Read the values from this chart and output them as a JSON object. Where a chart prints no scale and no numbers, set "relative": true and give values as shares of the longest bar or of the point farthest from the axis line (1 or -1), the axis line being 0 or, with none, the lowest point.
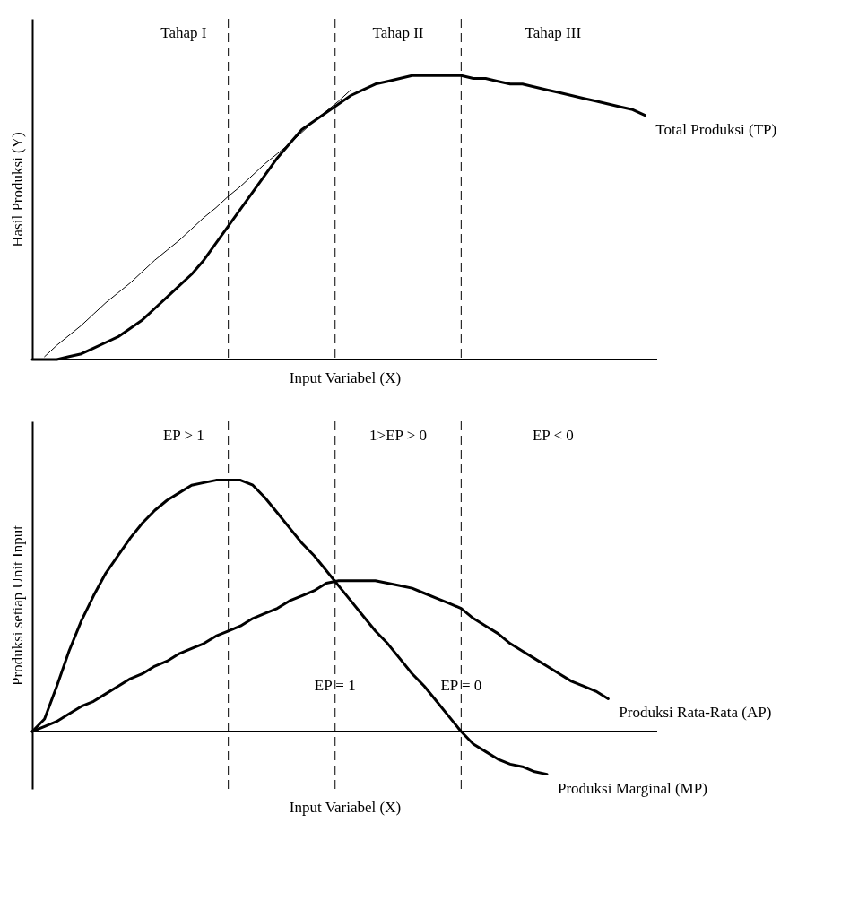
{
  "chart_data": [
    {
      "type": "line",
      "relative": true,
      "xlabel": "Input Variabel (X)",
      "ylabel": "Hasil Produksi (Y)",
      "categories": [
        null,
        null,
        null,
        null,
        null,
        null,
        null,
        null,
        null,
        null,
        null,
        null,
        null,
        null,
        null,
        null,
        null,
        null,
        null,
        null,
        null,
        null,
        null,
        null,
        null,
        null,
        null,
        null,
        null,
        null,
        null,
        null,
        null,
        null,
        null,
        null,
        null,
        null,
        null,
        null,
        null,
        null,
        null,
        null,
        null,
        null,
        null,
        null,
        null,
        null,
        null
      ],
      "series": [
        {
          "name": "Total Produksi (TP)",
          "color": "#000000",
          "values": [
            0,
            0,
            0,
            0.01,
            0.02,
            0.04,
            0.06,
            0.08,
            0.11,
            0.14,
            0.18,
            0.22,
            0.26,
            0.3,
            0.35,
            0.41,
            0.47,
            0.53,
            0.59,
            0.65,
            0.71,
            0.76,
            0.81,
            0.84,
            0.87,
            0.9,
            0.93,
            0.95,
            0.97,
            0.98,
            0.99,
            1,
            1,
            1,
            1,
            1,
            0.99,
            0.99,
            0.98,
            0.97,
            0.97,
            0.96,
            0.95,
            0.94,
            0.93,
            0.92,
            0.91,
            0.9,
            0.89,
            0.88,
            0.86
          ]
        },
        {
          "color": "#000000",
          "values": [
            null,
            0.01,
            0.05,
            0.085,
            0.12,
            0.16,
            0.2,
            0.235,
            0.27,
            0.31,
            0.35,
            0.385,
            0.42,
            0.46,
            0.5,
            0.535,
            0.575,
            0.61,
            0.65,
            0.69,
            0.725,
            0.76,
            0.8,
            0.84,
            0.875,
            0.91,
            0.95,
            null,
            null,
            null,
            null,
            null,
            null,
            null,
            null,
            null,
            null,
            null,
            null,
            null,
            null,
            null,
            null,
            null,
            null,
            null,
            null,
            null,
            null,
            null,
            null
          ]
        }
      ],
      "annotations": [
        "Tahap I",
        "Tahap II",
        "Tahap III"
      ]
    },
    {
      "type": "line",
      "relative": true,
      "xlabel": "Input Variabel (X)",
      "ylabel": "Produksi setiap Unit Input",
      "categories": [
        null,
        null,
        null,
        null,
        null,
        null,
        null,
        null,
        null,
        null,
        null,
        null,
        null,
        null,
        null,
        null,
        null,
        null,
        null,
        null,
        null,
        null,
        null,
        null,
        null,
        null,
        null,
        null,
        null,
        null,
        null,
        null,
        null,
        null,
        null,
        null,
        null,
        null,
        null,
        null,
        null,
        null,
        null,
        null,
        null,
        null,
        null,
        null,
        null,
        null,
        null
      ],
      "series": [
        {
          "name": "Produksi Rata-Rata (AP)",
          "color": "#000000",
          "values": [
            0,
            0.02,
            0.04,
            0.07,
            0.1,
            0.12,
            0.15,
            0.18,
            0.21,
            0.23,
            0.26,
            0.28,
            0.31,
            0.33,
            0.35,
            0.38,
            0.4,
            0.42,
            0.45,
            0.47,
            0.49,
            0.52,
            0.54,
            0.56,
            0.59,
            0.6,
            0.6,
            0.6,
            0.6,
            0.59,
            0.58,
            0.57,
            0.55,
            0.53,
            0.51,
            0.49,
            0.45,
            0.42,
            0.39,
            0.35,
            0.32,
            0.29,
            0.26,
            0.23,
            0.2,
            0.18,
            0.16,
            0.13,
            null,
            null,
            null
          ]
        },
        {
          "name": "Produksi Marginal (MP)",
          "color": "#000000",
          "values": [
            0,
            0.05,
            0.18,
            0.32,
            0.44,
            0.54,
            0.63,
            0.7,
            0.77,
            0.83,
            0.88,
            0.92,
            0.95,
            0.98,
            0.99,
            1,
            1,
            1,
            0.98,
            0.93,
            0.87,
            0.81,
            0.75,
            0.7,
            0.64,
            0.58,
            0.52,
            0.46,
            0.4,
            0.35,
            0.29,
            0.23,
            0.18,
            0.12,
            0.06,
            0,
            -0.05,
            -0.08,
            -0.11,
            -0.13,
            -0.14,
            -0.16,
            -0.17,
            null,
            null,
            null,
            null,
            null,
            null,
            null,
            null
          ]
        }
      ],
      "annotations": [
        "EP  > 1",
        "1>EP > 0",
        "EP  < 0",
        "EP = 1",
        "EP = 0"
      ]
    }
  ]
}
